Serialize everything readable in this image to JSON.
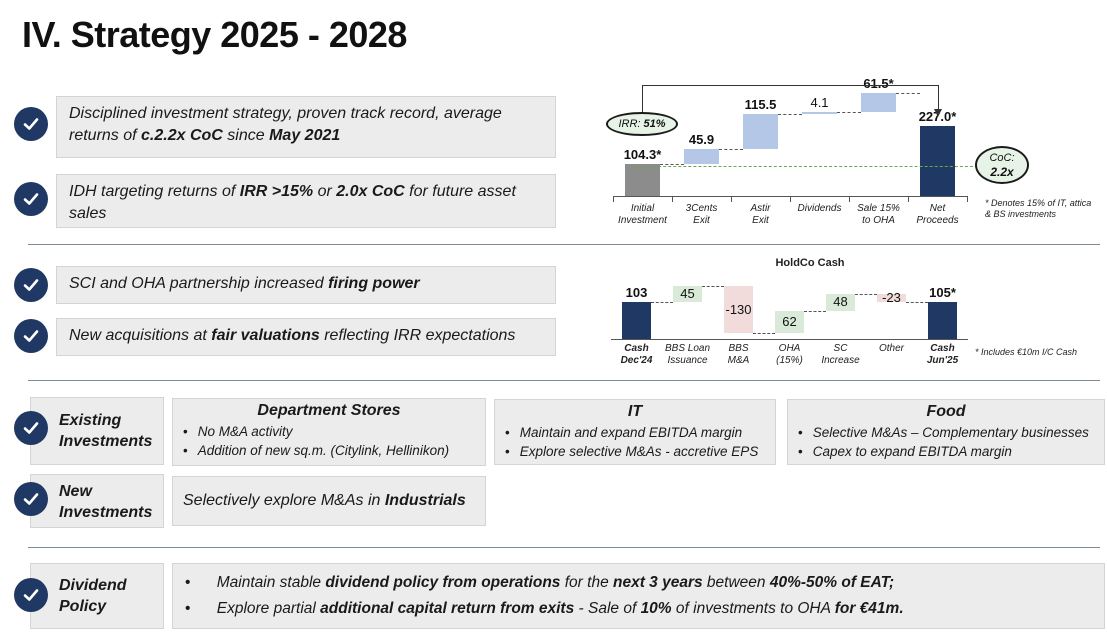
{
  "title": "IV. Strategy 2025 - 2028",
  "accent_color": "#1f3864",
  "bullets_top": [
    {
      "pre": "Disciplined investment strategy, proven track record, average returns of ",
      "b1": "c.2.2x CoC",
      "mid": " since ",
      "b2": "May 2021",
      "post": ""
    },
    {
      "pre": "IDH targeting returns of ",
      "b1": "IRR >15%",
      "mid": "  or ",
      "b2": "2.0x CoC",
      "post": " for future asset sales"
    },
    {
      "pre": "SCI and OHA partnership increased ",
      "b1": "firing power",
      "mid": "",
      "b2": "",
      "post": ""
    },
    {
      "pre": "New acquisitions at ",
      "b1": "fair valuations",
      "mid": " reflecting IRR expectations",
      "b2": "",
      "post": ""
    }
  ],
  "chart_data": [
    {
      "type": "waterfall",
      "title": "",
      "categories": [
        "Initial Investment",
        "3Cents Exit",
        "Astir Exit",
        "Dividends",
        "Sale 15% to OHA",
        "Net Proceeds"
      ],
      "category_lines": [
        [
          "Initial",
          "Investment"
        ],
        [
          "3Cents",
          "Exit"
        ],
        [
          "Astir",
          "Exit"
        ],
        [
          "Dividends"
        ],
        [
          "Sale 15%",
          "to OHA"
        ],
        [
          "Net",
          "Proceeds"
        ]
      ],
      "values": [
        104.3,
        45.9,
        115.5,
        4.1,
        61.5,
        227.0
      ],
      "labels": [
        "104.3*",
        "45.9",
        "115.5",
        "4.1",
        "61.5*",
        "227.0*"
      ],
      "kinds": [
        "total",
        "delta",
        "delta",
        "delta",
        "delta",
        "total"
      ],
      "ylim": [
        0,
        240
      ],
      "colors": {
        "total_start": "#8c8c8c",
        "delta": "#b4c7e7",
        "total_end": "#1f3864"
      },
      "irr_label": "IRR:",
      "irr_value": "51%",
      "coc_label": "CoC:",
      "coc_value": "2.2x",
      "footnote": "* Denotes 15% of IT, attica & BS investments"
    },
    {
      "type": "waterfall",
      "title": "HoldCo Cash",
      "categories": [
        "Cash Dec'24",
        "BBS Loan Issuance",
        "BBS M&A",
        "OHA (15%)",
        "SC Increase",
        "Other",
        "Cash Jun'25"
      ],
      "category_lines": [
        [
          "Cash",
          "Dec'24"
        ],
        [
          "BBS Loan",
          "Issuance"
        ],
        [
          "BBS",
          "M&A"
        ],
        [
          "OHA",
          "(15%)"
        ],
        [
          "SC",
          "Increase"
        ],
        [
          "Other"
        ],
        [
          "Cash",
          "Jun'25"
        ]
      ],
      "values": [
        103,
        45,
        -130,
        62,
        48,
        -23,
        105
      ],
      "labels": [
        "103",
        "45",
        "-130",
        "62",
        "48",
        "-23",
        "105*"
      ],
      "kinds": [
        "total",
        "delta",
        "delta",
        "delta",
        "delta",
        "delta",
        "total"
      ],
      "ylim": [
        0,
        160
      ],
      "colors": {
        "total": "#1f3864",
        "positive": "#d9ead9",
        "negative": "#f2dcdb"
      },
      "footnote": "* Includes €10m I/C Cash"
    }
  ],
  "existing": {
    "label_line1": "Existing",
    "label_line2": "Investments",
    "panels": [
      {
        "title": "Department Stores",
        "items": [
          "No M&A activity",
          "Addition of new sq.m. (Citylink, Hellinikon)"
        ]
      },
      {
        "title": "IT",
        "items": [
          "Maintain and expand EBITDA margin",
          "Explore selective M&As - accretive EPS"
        ]
      },
      {
        "title": "Food",
        "items": [
          "Selective M&As – Complementary businesses",
          "Capex to expand EBITDA margin"
        ]
      }
    ]
  },
  "new_inv": {
    "label_line1": "New",
    "label_line2": "Investments",
    "pre": "Selectively explore M&As in ",
    "bold": "Industrials"
  },
  "dividend": {
    "label_line1": "Dividend",
    "label_line2": "Policy",
    "line1": {
      "t1": "Maintain stable ",
      "b1": "dividend policy from operations",
      "t2": " for the ",
      "b2": "next 3 years",
      "t3": " between ",
      "b3": "40%-50% of EAT;"
    },
    "line2": {
      "t1": "Explore partial ",
      "b1": "additional capital return from exits",
      "t2": " - Sale of ",
      "b2": "10%",
      "t3": " of investments to OHA ",
      "b3": "for €41m."
    }
  }
}
